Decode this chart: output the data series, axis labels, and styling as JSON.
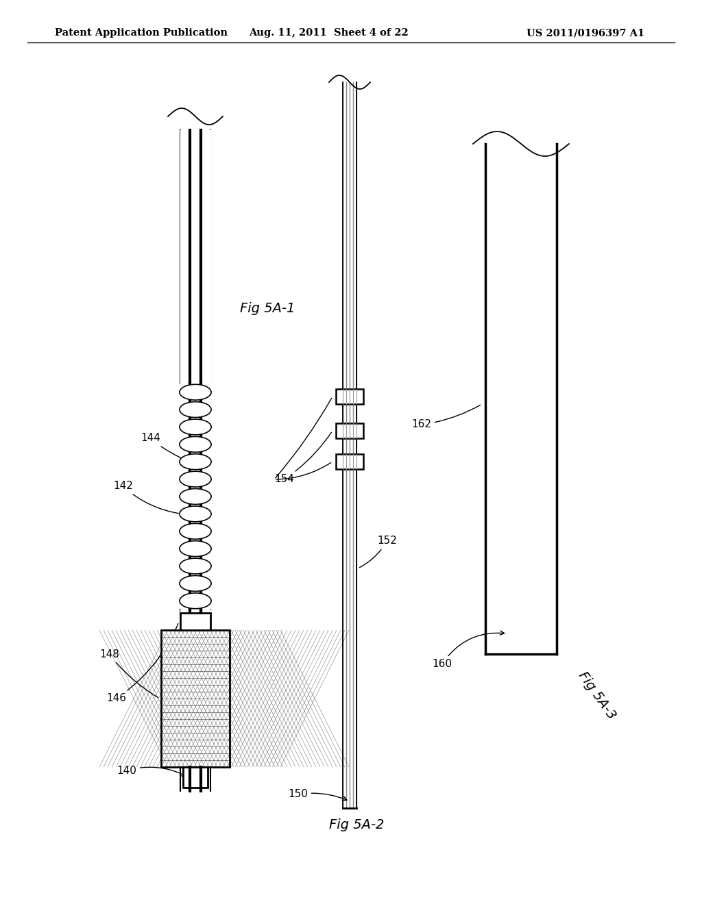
{
  "bg_color": "#ffffff",
  "header_left": "Patent Application Publication",
  "header_center": "Aug. 11, 2011  Sheet 4 of 22",
  "header_right": "US 2011/0196397 A1",
  "fig5a1_label": "Fig 5A-1",
  "fig5a2_label": "Fig 5A-2",
  "fig5a3_label": "Fig 5A-3"
}
